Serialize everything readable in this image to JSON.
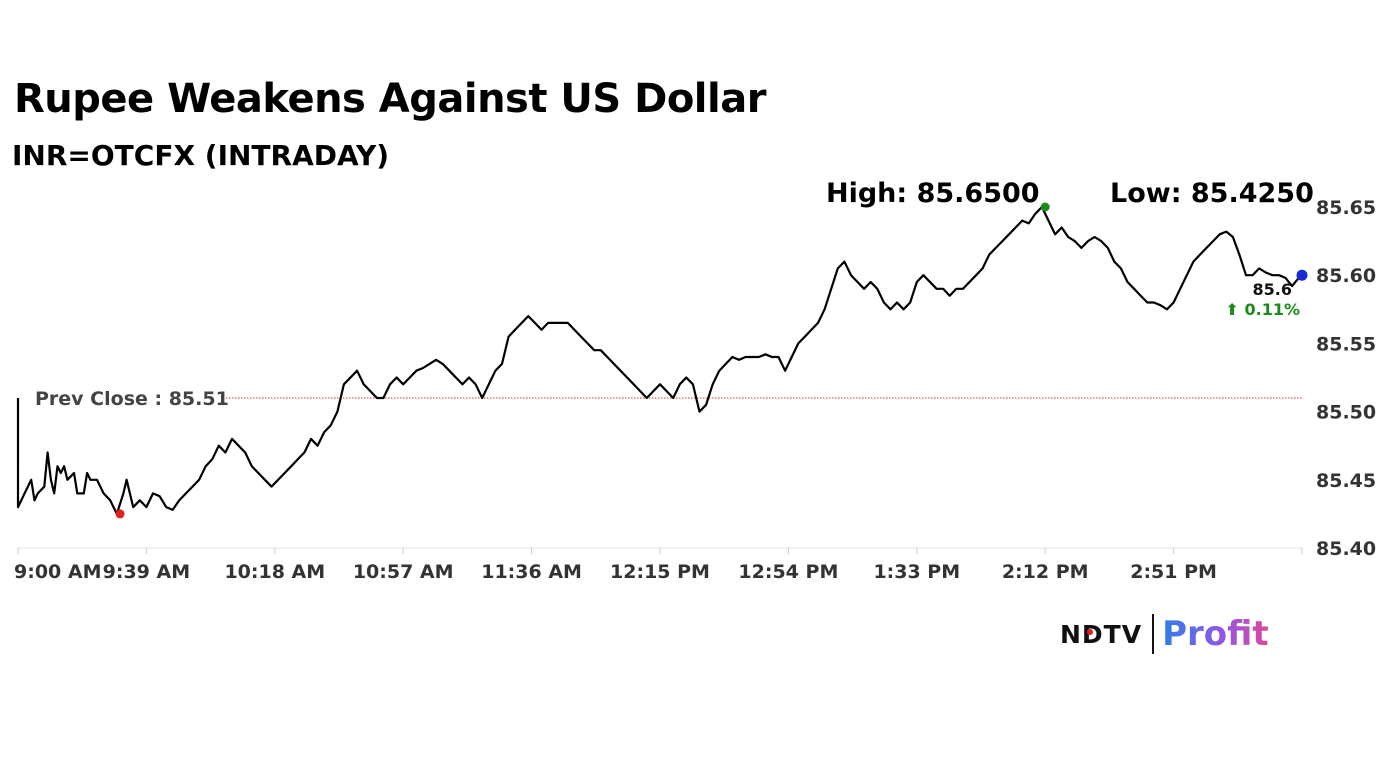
{
  "header": {
    "title": "Rupee Weakens Against US Dollar",
    "subtitle": "INR=OTCFX (INTRADAY)",
    "high_label": "High: 85.6500",
    "low_label": "Low: 85.4250"
  },
  "brand": {
    "name": "NDTV",
    "product": "Profit"
  },
  "colors": {
    "line": "#000000",
    "prev_close_line": "#c0392b",
    "high_marker": "#1a8a1a",
    "low_marker": "#e0201b",
    "last_marker": "#1a2bd6",
    "change_text": "#1a8a1a"
  },
  "chart_data": {
    "type": "line",
    "title": "Rupee Weakens Against US Dollar",
    "subtitle": "INR=OTCFX (INTRADAY)",
    "xlabel": "",
    "ylabel": "",
    "x_range": [
      "9:00 AM",
      "3:30 PM"
    ],
    "ylim": [
      85.4,
      85.65
    ],
    "y_ticks": [
      "85.65",
      "85.60",
      "85.55",
      "85.50",
      "85.45",
      "85.40"
    ],
    "x_ticks": [
      "9:00 AM",
      "9:39 AM",
      "10:18 AM",
      "10:57 AM",
      "11:36 AM",
      "12:15 PM",
      "12:54 PM",
      "1:33 PM",
      "2:12 PM",
      "2:51 PM"
    ],
    "grid": false,
    "y_axis_position": "right",
    "prev_close": {
      "label": "Prev Close : 85.51",
      "value": 85.51
    },
    "high": {
      "time": "2:12 PM",
      "value": 85.65
    },
    "low": {
      "time": "9:31 AM",
      "value": 85.425
    },
    "last": {
      "time": "3:30 PM",
      "value": 85.6,
      "label": "85.6",
      "change": "⬆ 0.11%"
    },
    "series": [
      {
        "values": [
          [
            "9:00 AM",
            85.51
          ],
          [
            "9:00 AM",
            85.43
          ],
          [
            "9:02 AM",
            85.44
          ],
          [
            "9:04 AM",
            85.45
          ],
          [
            "9:05 AM",
            85.435
          ],
          [
            "9:06 AM",
            85.44
          ],
          [
            "9:08 AM",
            85.445
          ],
          [
            "9:09 AM",
            85.47
          ],
          [
            "9:10 AM",
            85.45
          ],
          [
            "9:11 AM",
            85.44
          ],
          [
            "9:12 AM",
            85.46
          ],
          [
            "9:13 AM",
            85.455
          ],
          [
            "9:14 AM",
            85.46
          ],
          [
            "9:15 AM",
            85.45
          ],
          [
            "9:17 AM",
            85.455
          ],
          [
            "9:18 AM",
            85.44
          ],
          [
            "9:20 AM",
            85.44
          ],
          [
            "9:21 AM",
            85.455
          ],
          [
            "9:22 AM",
            85.45
          ],
          [
            "9:24 AM",
            85.45
          ],
          [
            "9:26 AM",
            85.44
          ],
          [
            "9:28 AM",
            85.435
          ],
          [
            "9:30 AM",
            85.425
          ],
          [
            "9:32 AM",
            85.44
          ],
          [
            "9:33 AM",
            85.45
          ],
          [
            "9:35 AM",
            85.43
          ],
          [
            "9:37 AM",
            85.435
          ],
          [
            "9:39 AM",
            85.43
          ],
          [
            "9:41 AM",
            85.44
          ],
          [
            "9:43 AM",
            85.438
          ],
          [
            "9:45 AM",
            85.43
          ],
          [
            "9:47 AM",
            85.428
          ],
          [
            "9:49 AM",
            85.435
          ],
          [
            "9:51 AM",
            85.44
          ],
          [
            "9:53 AM",
            85.445
          ],
          [
            "9:55 AM",
            85.45
          ],
          [
            "9:57 AM",
            85.46
          ],
          [
            "9:59 AM",
            85.465
          ],
          [
            "10:01 AM",
            85.475
          ],
          [
            "10:03 AM",
            85.47
          ],
          [
            "10:05 AM",
            85.48
          ],
          [
            "10:07 AM",
            85.475
          ],
          [
            "10:09 AM",
            85.47
          ],
          [
            "10:11 AM",
            85.46
          ],
          [
            "10:13 AM",
            85.455
          ],
          [
            "10:15 AM",
            85.45
          ],
          [
            "10:17 AM",
            85.445
          ],
          [
            "10:19 AM",
            85.45
          ],
          [
            "10:21 AM",
            85.455
          ],
          [
            "10:23 AM",
            85.46
          ],
          [
            "10:25 AM",
            85.465
          ],
          [
            "10:27 AM",
            85.47
          ],
          [
            "10:29 AM",
            85.48
          ],
          [
            "10:31 AM",
            85.475
          ],
          [
            "10:33 AM",
            85.485
          ],
          [
            "10:35 AM",
            85.49
          ],
          [
            "10:37 AM",
            85.5
          ],
          [
            "10:39 AM",
            85.52
          ],
          [
            "10:41 AM",
            85.525
          ],
          [
            "10:43 AM",
            85.53
          ],
          [
            "10:45 AM",
            85.52
          ],
          [
            "10:47 AM",
            85.515
          ],
          [
            "10:49 AM",
            85.51
          ],
          [
            "10:51 AM",
            85.51
          ],
          [
            "10:53 AM",
            85.52
          ],
          [
            "10:55 AM",
            85.525
          ],
          [
            "10:57 AM",
            85.52
          ],
          [
            "10:59 AM",
            85.525
          ],
          [
            "11:01 AM",
            85.53
          ],
          [
            "11:03 AM",
            85.532
          ],
          [
            "11:05 AM",
            85.535
          ],
          [
            "11:07 AM",
            85.538
          ],
          [
            "11:09 AM",
            85.535
          ],
          [
            "11:11 AM",
            85.53
          ],
          [
            "11:13 AM",
            85.525
          ],
          [
            "11:15 AM",
            85.52
          ],
          [
            "11:17 AM",
            85.525
          ],
          [
            "11:19 AM",
            85.52
          ],
          [
            "11:21 AM",
            85.51
          ],
          [
            "11:23 AM",
            85.52
          ],
          [
            "11:25 AM",
            85.53
          ],
          [
            "11:27 AM",
            85.535
          ],
          [
            "11:29 AM",
            85.555
          ],
          [
            "11:31 AM",
            85.56
          ],
          [
            "11:33 AM",
            85.565
          ],
          [
            "11:35 AM",
            85.57
          ],
          [
            "11:37 AM",
            85.565
          ],
          [
            "11:39 AM",
            85.56
          ],
          [
            "11:41 AM",
            85.565
          ],
          [
            "11:43 AM",
            85.565
          ],
          [
            "11:45 AM",
            85.565
          ],
          [
            "11:47 AM",
            85.565
          ],
          [
            "11:49 AM",
            85.56
          ],
          [
            "11:51 AM",
            85.555
          ],
          [
            "11:53 AM",
            85.55
          ],
          [
            "11:55 AM",
            85.545
          ],
          [
            "11:57 AM",
            85.545
          ],
          [
            "11:59 AM",
            85.54
          ],
          [
            "12:01 PM",
            85.535
          ],
          [
            "12:03 PM",
            85.53
          ],
          [
            "12:05 PM",
            85.525
          ],
          [
            "12:07 PM",
            85.52
          ],
          [
            "12:09 PM",
            85.515
          ],
          [
            "12:11 PM",
            85.51
          ],
          [
            "12:13 PM",
            85.515
          ],
          [
            "12:15 PM",
            85.52
          ],
          [
            "12:17 PM",
            85.515
          ],
          [
            "12:19 PM",
            85.51
          ],
          [
            "12:21 PM",
            85.52
          ],
          [
            "12:23 PM",
            85.525
          ],
          [
            "12:25 PM",
            85.52
          ],
          [
            "12:27 PM",
            85.5
          ],
          [
            "12:29 PM",
            85.505
          ],
          [
            "12:31 PM",
            85.52
          ],
          [
            "12:33 PM",
            85.53
          ],
          [
            "12:35 PM",
            85.535
          ],
          [
            "12:37 PM",
            85.54
          ],
          [
            "12:39 PM",
            85.538
          ],
          [
            "12:41 PM",
            85.54
          ],
          [
            "12:43 PM",
            85.54
          ],
          [
            "12:45 PM",
            85.54
          ],
          [
            "12:47 PM",
            85.542
          ],
          [
            "12:49 PM",
            85.54
          ],
          [
            "12:51 PM",
            85.54
          ],
          [
            "12:53 PM",
            85.53
          ],
          [
            "12:55 PM",
            85.54
          ],
          [
            "12:57 PM",
            85.55
          ],
          [
            "12:59 PM",
            85.555
          ],
          [
            "1:01 PM",
            85.56
          ],
          [
            "1:03 PM",
            85.565
          ],
          [
            "1:05 PM",
            85.575
          ],
          [
            "1:07 PM",
            85.59
          ],
          [
            "1:09 PM",
            85.605
          ],
          [
            "1:11 PM",
            85.61
          ],
          [
            "1:13 PM",
            85.6
          ],
          [
            "1:15 PM",
            85.595
          ],
          [
            "1:17 PM",
            85.59
          ],
          [
            "1:19 PM",
            85.595
          ],
          [
            "1:21 PM",
            85.59
          ],
          [
            "1:23 PM",
            85.58
          ],
          [
            "1:25 PM",
            85.575
          ],
          [
            "1:27 PM",
            85.58
          ],
          [
            "1:29 PM",
            85.575
          ],
          [
            "1:31 PM",
            85.58
          ],
          [
            "1:33 PM",
            85.595
          ],
          [
            "1:35 PM",
            85.6
          ],
          [
            "1:37 PM",
            85.595
          ],
          [
            "1:39 PM",
            85.59
          ],
          [
            "1:41 PM",
            85.59
          ],
          [
            "1:43 PM",
            85.585
          ],
          [
            "1:45 PM",
            85.59
          ],
          [
            "1:47 PM",
            85.59
          ],
          [
            "1:49 PM",
            85.595
          ],
          [
            "1:51 PM",
            85.6
          ],
          [
            "1:53 PM",
            85.605
          ],
          [
            "1:55 PM",
            85.615
          ],
          [
            "1:57 PM",
            85.62
          ],
          [
            "1:59 PM",
            85.625
          ],
          [
            "2:01 PM",
            85.63
          ],
          [
            "2:03 PM",
            85.635
          ],
          [
            "2:05 PM",
            85.64
          ],
          [
            "2:07 PM",
            85.638
          ],
          [
            "2:09 PM",
            85.645
          ],
          [
            "2:11 PM",
            85.65
          ],
          [
            "2:13 PM",
            85.64
          ],
          [
            "2:15 PM",
            85.63
          ],
          [
            "2:17 PM",
            85.635
          ],
          [
            "2:19 PM",
            85.628
          ],
          [
            "2:21 PM",
            85.625
          ],
          [
            "2:23 PM",
            85.62
          ],
          [
            "2:25 PM",
            85.625
          ],
          [
            "2:27 PM",
            85.628
          ],
          [
            "2:29 PM",
            85.625
          ],
          [
            "2:31 PM",
            85.62
          ],
          [
            "2:33 PM",
            85.61
          ],
          [
            "2:35 PM",
            85.605
          ],
          [
            "2:37 PM",
            85.595
          ],
          [
            "2:39 PM",
            85.59
          ],
          [
            "2:41 PM",
            85.585
          ],
          [
            "2:43 PM",
            85.58
          ],
          [
            "2:45 PM",
            85.58
          ],
          [
            "2:47 PM",
            85.578
          ],
          [
            "2:49 PM",
            85.575
          ],
          [
            "2:51 PM",
            85.58
          ],
          [
            "2:53 PM",
            85.59
          ],
          [
            "2:55 PM",
            85.6
          ],
          [
            "2:57 PM",
            85.61
          ],
          [
            "2:59 PM",
            85.615
          ],
          [
            "3:01 PM",
            85.62
          ],
          [
            "3:03 PM",
            85.625
          ],
          [
            "3:05 PM",
            85.63
          ],
          [
            "3:07 PM",
            85.632
          ],
          [
            "3:09 PM",
            85.628
          ],
          [
            "3:11 PM",
            85.615
          ],
          [
            "3:13 PM",
            85.6
          ],
          [
            "3:15 PM",
            85.6
          ],
          [
            "3:17 PM",
            85.605
          ],
          [
            "3:19 PM",
            85.602
          ],
          [
            "3:21 PM",
            85.6
          ],
          [
            "3:23 PM",
            85.6
          ],
          [
            "3:25 PM",
            85.598
          ],
          [
            "3:27 PM",
            85.592
          ],
          [
            "3:29 PM",
            85.598
          ],
          [
            "3:30 PM",
            85.6
          ]
        ]
      }
    ]
  }
}
